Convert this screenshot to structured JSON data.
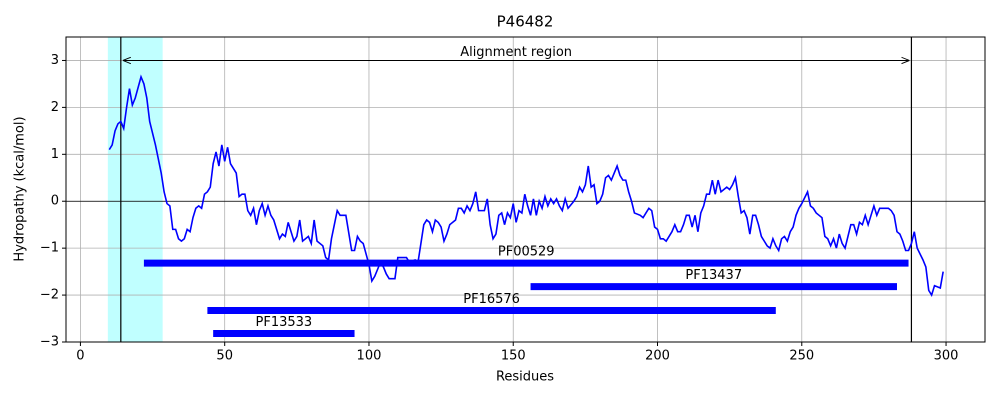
{
  "chart_data": {
    "type": "line",
    "title": "P46482",
    "xlabel": "Residues",
    "ylabel": "Hydropathy (kcal/mol)",
    "color": "#0000ff",
    "grid": true,
    "xlim": [
      -5,
      313.5
    ],
    "ylim": [
      -3,
      3.5
    ],
    "xticks": [
      0,
      50,
      100,
      150,
      200,
      250,
      300
    ],
    "yticks": [
      {
        "value": -3,
        "label": "−3"
      },
      {
        "value": -2,
        "label": "−2"
      },
      {
        "value": -1,
        "label": "−1"
      },
      0,
      1,
      2,
      3
    ],
    "x": [
      10,
      11,
      12,
      13,
      14,
      15,
      16,
      17,
      18,
      19,
      21,
      22,
      23,
      24,
      26,
      28,
      29,
      30,
      31,
      32,
      33,
      34,
      35,
      36,
      37,
      38,
      39,
      40,
      41,
      42,
      43,
      44,
      45,
      46,
      47,
      48,
      49,
      50,
      51,
      52,
      54,
      55,
      56,
      57,
      58,
      59,
      60,
      61,
      62,
      63,
      64,
      65,
      66,
      67,
      69,
      70,
      71,
      72,
      74,
      75,
      76,
      77,
      79,
      80,
      81,
      82,
      84,
      85,
      86,
      87,
      88,
      89,
      90,
      92,
      94,
      95,
      96,
      97,
      98,
      100,
      101,
      102,
      104,
      105,
      106,
      107,
      109,
      110,
      113,
      114,
      116,
      117,
      118,
      119,
      120,
      121,
      122,
      123,
      124,
      125,
      126,
      127,
      128,
      130,
      131,
      132,
      133,
      134,
      135,
      136,
      137,
      138,
      140,
      141,
      142,
      143,
      144,
      145,
      146,
      147,
      148,
      149,
      150,
      151,
      152,
      153,
      154,
      155,
      156,
      157,
      158,
      159,
      160,
      161,
      162,
      163,
      164,
      165,
      166,
      167,
      168,
      169,
      171,
      172,
      173,
      174,
      175,
      176,
      177,
      178,
      179,
      180,
      181,
      182,
      183,
      184,
      185,
      186,
      187,
      188,
      189,
      190,
      191,
      192,
      194,
      195,
      196,
      197,
      198,
      199,
      200,
      201,
      202,
      203,
      204,
      205,
      206,
      207,
      208,
      209,
      210,
      211,
      212,
      213,
      214,
      215,
      216,
      217,
      218,
      219,
      220,
      221,
      222,
      223,
      224,
      225,
      226,
      227,
      228,
      229,
      230,
      231,
      232,
      233,
      234,
      235,
      236,
      237,
      238,
      239,
      240,
      241,
      242,
      243,
      244,
      245,
      246,
      247,
      248,
      249,
      250,
      252,
      253,
      254,
      255,
      256,
      257,
      258,
      259,
      260,
      261,
      262,
      263,
      264,
      265,
      266,
      267,
      268,
      269,
      270,
      271,
      272,
      273,
      275,
      276,
      277,
      280,
      281,
      282,
      283,
      284,
      285,
      286,
      287,
      288,
      289,
      290,
      292,
      293,
      294,
      295,
      296,
      298,
      299
    ],
    "values": [
      1.1,
      1.2,
      1.5,
      1.65,
      1.7,
      1.55,
      2.0,
      2.4,
      2.05,
      2.2,
      2.65,
      2.5,
      2.2,
      1.7,
      1.2,
      0.6,
      0.2,
      -0.05,
      -0.1,
      -0.6,
      -0.6,
      -0.8,
      -0.85,
      -0.8,
      -0.6,
      -0.65,
      -0.35,
      -0.15,
      -0.1,
      -0.15,
      0.15,
      0.2,
      0.3,
      0.8,
      1.05,
      0.75,
      1.2,
      0.85,
      1.15,
      0.8,
      0.6,
      0.1,
      0.15,
      0.15,
      -0.2,
      -0.3,
      -0.15,
      -0.5,
      -0.2,
      -0.05,
      -0.3,
      -0.1,
      -0.3,
      -0.4,
      -0.8,
      -0.7,
      -0.75,
      -0.45,
      -0.85,
      -0.75,
      -0.4,
      -0.85,
      -0.75,
      -0.9,
      -0.4,
      -0.85,
      -0.95,
      -1.2,
      -1.25,
      -0.8,
      -0.5,
      -0.2,
      -0.3,
      -0.3,
      -1.05,
      -1.05,
      -0.75,
      -0.85,
      -0.9,
      -1.35,
      -1.7,
      -1.6,
      -1.3,
      -1.4,
      -1.55,
      -1.65,
      -1.65,
      -1.2,
      -1.2,
      -1.3,
      -1.25,
      -1.3,
      -0.9,
      -0.5,
      -0.4,
      -0.45,
      -0.65,
      -0.4,
      -0.45,
      -0.55,
      -0.85,
      -0.7,
      -0.5,
      -0.4,
      -0.15,
      -0.15,
      -0.25,
      -0.1,
      -0.2,
      -0.05,
      0.2,
      -0.2,
      -0.2,
      0.05,
      -0.5,
      -0.8,
      -0.7,
      -0.3,
      -0.25,
      -0.5,
      -0.25,
      -0.35,
      -0.05,
      -0.45,
      -0.2,
      -0.25,
      0.15,
      -0.1,
      -0.3,
      0.05,
      -0.3,
      0.0,
      -0.15,
      0.1,
      -0.1,
      0.05,
      -0.05,
      0.05,
      -0.1,
      -0.2,
      0.05,
      -0.15,
      0.0,
      0.1,
      0.3,
      0.2,
      0.35,
      0.75,
      0.3,
      0.35,
      -0.05,
      0.0,
      0.15,
      0.5,
      0.55,
      0.45,
      0.6,
      0.75,
      0.55,
      0.45,
      0.45,
      0.2,
      0.0,
      -0.25,
      -0.3,
      -0.35,
      -0.25,
      -0.15,
      -0.2,
      -0.55,
      -0.6,
      -0.8,
      -0.8,
      -0.85,
      -0.75,
      -0.65,
      -0.5,
      -0.65,
      -0.65,
      -0.5,
      -0.3,
      -0.3,
      -0.55,
      -0.3,
      -0.65,
      -0.25,
      -0.1,
      0.15,
      0.15,
      0.45,
      0.15,
      0.45,
      0.2,
      0.25,
      0.3,
      0.25,
      0.35,
      0.5,
      0.1,
      -0.25,
      -0.2,
      -0.35,
      -0.7,
      -0.3,
      -0.3,
      -0.5,
      -0.75,
      -0.85,
      -0.95,
      -1.0,
      -0.8,
      -0.95,
      -1.05,
      -0.8,
      -0.75,
      -0.85,
      -0.65,
      -0.55,
      -0.3,
      -0.15,
      -0.05,
      0.2,
      -0.1,
      -0.15,
      -0.25,
      -0.3,
      -0.35,
      -0.75,
      -0.8,
      -0.95,
      -0.8,
      -1.0,
      -0.7,
      -0.9,
      -1.0,
      -0.75,
      -0.5,
      -0.5,
      -0.7,
      -0.45,
      -0.5,
      -0.3,
      -0.5,
      -0.1,
      -0.3,
      -0.15,
      -0.15,
      -0.2,
      -0.3,
      -0.65,
      -0.7,
      -0.85,
      -1.05,
      -1.05,
      -0.9,
      -0.65,
      -1.0,
      -1.25,
      -1.4,
      -1.9,
      -2.0,
      -1.8,
      -1.85,
      -1.5
    ],
    "highlight_span": {
      "start": 9.5,
      "end": 28.5,
      "color": "#c0ffff"
    },
    "vlines": [
      14,
      288
    ],
    "annotation": {
      "text": "Alignment region",
      "y": 3
    },
    "domains": [
      {
        "name": "PF00529",
        "start": 22,
        "end": 287,
        "y": -1.32,
        "color": "#0000ff"
      },
      {
        "name": "PF13437",
        "start": 156,
        "end": 283,
        "y": -1.82,
        "color": "#0000ff"
      },
      {
        "name": "PF16576",
        "start": 44,
        "end": 241,
        "y": -2.33,
        "color": "#0000ff"
      },
      {
        "name": "PF13533",
        "start": 46,
        "end": 95,
        "y": -2.82,
        "color": "#0000ff"
      }
    ]
  }
}
